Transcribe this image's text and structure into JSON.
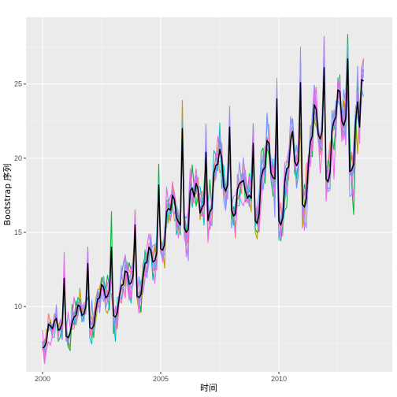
{
  "chart_data": {
    "type": "line",
    "title": "",
    "xlabel": "时间",
    "ylabel": "Bootstrap 序列",
    "x_ticks": [
      "2000",
      "2005",
      "2010"
    ],
    "y_ticks": [
      "10",
      "15",
      "20",
      "25"
    ],
    "x_tick_values": [
      2000,
      2005,
      2010
    ],
    "y_tick_values": [
      10,
      15,
      20,
      25
    ],
    "xlim": [
      1999.3,
      2014.8
    ],
    "ylim": [
      5.6,
      29.5
    ],
    "grid": true,
    "legend": "none",
    "series_colors": [
      "#F8766D",
      "#B79F00",
      "#00BA38",
      "#00BFC4",
      "#619CFF",
      "#F564E3",
      "#E76BF3",
      "#9590FF"
    ],
    "original_color": "#000000",
    "original_series": {
      "x_start": 2000.0,
      "x_step": 0.08333,
      "values": [
        7.2,
        7.3,
        7.6,
        8.8,
        8.7,
        8.5,
        9.0,
        9.2,
        8.4,
        8.5,
        8.9,
        11.9,
        8.0,
        7.9,
        8.2,
        8.9,
        9.3,
        9.4,
        10.1,
        10.0,
        9.4,
        9.5,
        10.0,
        12.9,
        8.6,
        8.5,
        8.7,
        9.7,
        10.5,
        10.6,
        11.5,
        11.3,
        10.6,
        10.7,
        11.1,
        14.0,
        9.4,
        9.3,
        9.6,
        10.7,
        11.4,
        11.5,
        12.4,
        12.3,
        11.5,
        11.6,
        12.1,
        15.5,
        10.7,
        10.6,
        10.8,
        12.0,
        12.9,
        13.0,
        14.0,
        13.8,
        13.0,
        13.1,
        13.6,
        18.2,
        13.9,
        13.8,
        14.2,
        16.4,
        16.6,
        16.5,
        17.5,
        17.2,
        16.0,
        15.7,
        15.5,
        22.0,
        15.3,
        15.0,
        15.2,
        17.8,
        18.0,
        17.4,
        18.3,
        17.9,
        16.3,
        16.7,
        16.9,
        20.4,
        15.8,
        16.4,
        16.6,
        19.0,
        19.5,
        19.6,
        20.6,
        20.0,
        18.1,
        17.8,
        18.2,
        22.1,
        16.5,
        16.1,
        16.3,
        17.9,
        18.3,
        18.4,
        18.5,
        17.8,
        17.3,
        17.5,
        17.3,
        21.0,
        15.8,
        15.6,
        16.3,
        18.7,
        19.2,
        19.4,
        21.2,
        21.0,
        19.0,
        18.7,
        18.6,
        24.0,
        15.8,
        15.5,
        16.0,
        18.4,
        19.3,
        19.4,
        21.2,
        21.8,
        19.8,
        19.5,
        19.8,
        25.1,
        16.9,
        16.7,
        17.3,
        19.6,
        21.1,
        21.5,
        23.6,
        23.3,
        21.6,
        21.3,
        21.8,
        26.1,
        18.6,
        18.4,
        19.0,
        21.9,
        22.5,
        22.8,
        24.6,
        24.5,
        22.5,
        22.2,
        22.7,
        26.7,
        19.1,
        19.2,
        19.6,
        22.5,
        23.8,
        22.1,
        25.3,
        25.2
      ]
    },
    "bootstrap_noise_sd": 0.85
  }
}
